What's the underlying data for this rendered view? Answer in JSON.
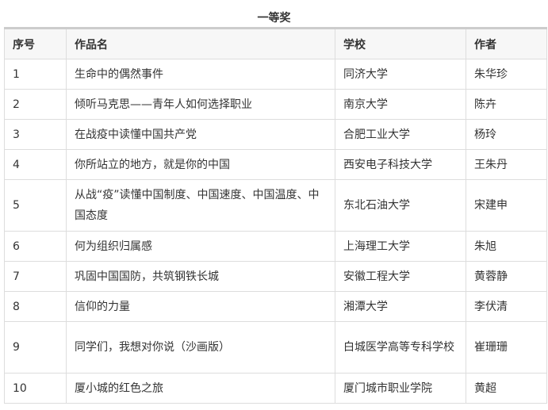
{
  "caption": "一等奖",
  "headers": [
    "序号",
    "作品名",
    "学校",
    "作者"
  ],
  "rows": [
    [
      "1",
      "生命中的偶然事件",
      "同济大学",
      "朱华珍"
    ],
    [
      "2",
      "倾听马克思——青年人如何选择职业",
      "南京大学",
      "陈卉"
    ],
    [
      "3",
      "在战疫中读懂中国共产党",
      "合肥工业大学",
      "杨玲"
    ],
    [
      "4",
      "你所站立的地方，就是你的中国",
      "西安电子科技大学",
      "王朱丹"
    ],
    [
      "5",
      "从战“疫”读懂中国制度、中国速度、中国温度、中国态度",
      "东北石油大学",
      "宋建申"
    ],
    [
      "6",
      "何为组织归属感",
      "上海理工大学",
      "朱旭"
    ],
    [
      "7",
      "巩固中国国防，共筑钢铁长城",
      "安徽工程大学",
      "黄蓉静"
    ],
    [
      "8",
      "信仰的力量",
      "湘潭大学",
      "李伏清"
    ],
    [
      "9",
      "同学们，我想对你说（沙画版）",
      "白城医学高等专科学校",
      "崔珊珊"
    ],
    [
      "10",
      "厦小城的红色之旅",
      "厦门城市职业学院",
      "黄超"
    ]
  ]
}
